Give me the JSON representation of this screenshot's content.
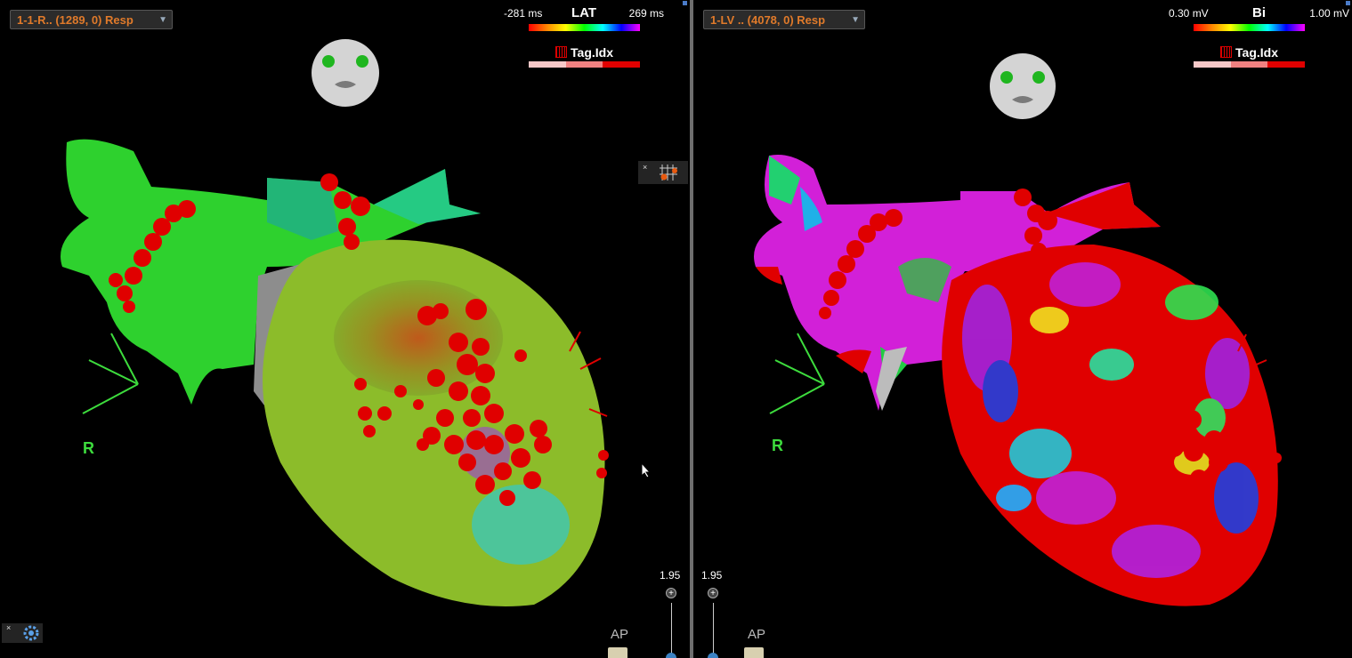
{
  "left_view": {
    "map_selector": "1-1-R.. (1289, 0) Resp",
    "scale": {
      "min": "-281 ms",
      "name": "LAT",
      "max": "269 ms"
    },
    "tag_label": "Tag.Idx",
    "zoom": "1.95",
    "view": "AP",
    "orientation": "R"
  },
  "right_view": {
    "map_selector": "1-LV .. (4078, 0) Resp",
    "scale": {
      "min": "0.30 mV",
      "name": "Bi",
      "max": "1.00 mV"
    },
    "tag_label": "Tag.Idx",
    "zoom": "1.95",
    "view": "AP",
    "orientation": "R"
  },
  "icons": {
    "dropdown": "chevron-down-icon",
    "settings": "gear-icon",
    "tags": "tag-grid-icon",
    "head": "patient-head-icon",
    "cursor": "cursor-arrow-icon"
  },
  "colors": {
    "selector_text": "#e07a2a",
    "divider": "#6e6e6e",
    "orientation_axis": "#3ddc3d",
    "tag_red": "#e00000"
  }
}
